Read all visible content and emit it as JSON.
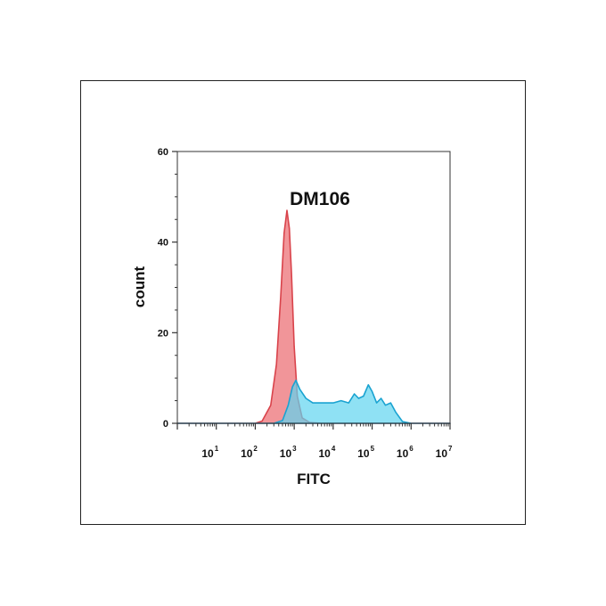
{
  "chart_data": {
    "type": "area",
    "title": "DM106",
    "xlabel": "FITC",
    "ylabel": "count",
    "x_scale": "log",
    "xlim": [
      1,
      10000000
    ],
    "ylim": [
      0,
      60
    ],
    "y_ticks": [
      "0",
      "20",
      "40",
      "60"
    ],
    "x_ticks": [
      {
        "base": "10",
        "exp": "1"
      },
      {
        "base": "10",
        "exp": "2"
      },
      {
        "base": "10",
        "exp": "3"
      },
      {
        "base": "10",
        "exp": "4"
      },
      {
        "base": "10",
        "exp": "5"
      },
      {
        "base": "10",
        "exp": "6"
      },
      {
        "base": "10",
        "exp": "7"
      }
    ],
    "grid": false,
    "series": [
      {
        "color": "#f08a8e",
        "stroke": "#d9434b",
        "points": [
          [
            1,
            0
          ],
          [
            100,
            0
          ],
          [
            150,
            0.5
          ],
          [
            250,
            4
          ],
          [
            350,
            13
          ],
          [
            450,
            28
          ],
          [
            550,
            42
          ],
          [
            650,
            47
          ],
          [
            750,
            43
          ],
          [
            850,
            33
          ],
          [
            1000,
            17
          ],
          [
            1200,
            6
          ],
          [
            1600,
            1.2
          ],
          [
            2500,
            0.2
          ],
          [
            5000,
            0
          ],
          [
            10000000,
            0
          ]
        ]
      },
      {
        "color": "#5fd4ef",
        "stroke": "#1aa3d1",
        "points": [
          [
            1,
            0
          ],
          [
            300,
            0
          ],
          [
            500,
            0.6
          ],
          [
            700,
            4
          ],
          [
            900,
            8
          ],
          [
            1100,
            9.5
          ],
          [
            1400,
            7.5
          ],
          [
            2000,
            5.5
          ],
          [
            3000,
            4.5
          ],
          [
            6000,
            4.5
          ],
          [
            10000,
            4.5
          ],
          [
            16000,
            5
          ],
          [
            25000,
            4.5
          ],
          [
            35000,
            6.5
          ],
          [
            45000,
            5.5
          ],
          [
            60000,
            6
          ],
          [
            80000,
            8.5
          ],
          [
            100000,
            7
          ],
          [
            130000,
            4.5
          ],
          [
            170000,
            5.5
          ],
          [
            220000,
            4
          ],
          [
            300000,
            4.5
          ],
          [
            400000,
            2.5
          ],
          [
            600000,
            0.4
          ],
          [
            1000000,
            0
          ],
          [
            10000000,
            0
          ]
        ]
      }
    ]
  }
}
